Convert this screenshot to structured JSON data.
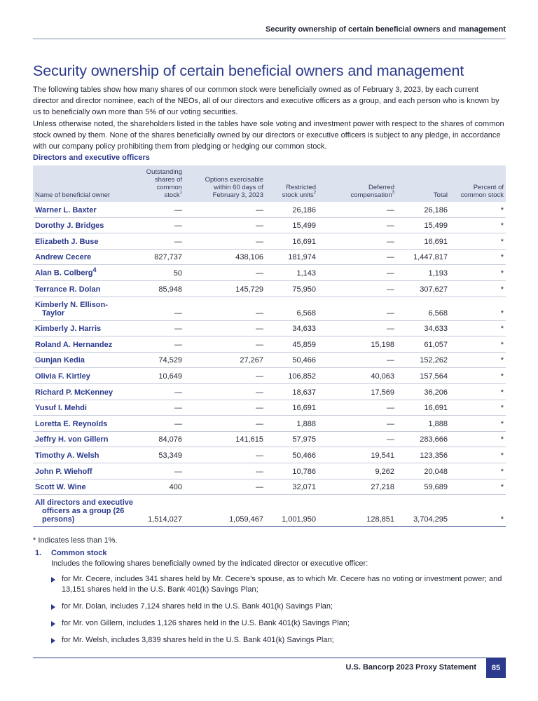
{
  "running_header": "Security ownership of certain beneficial owners and management",
  "title": "Security ownership of certain beneficial owners and management",
  "intro_paragraphs": [
    "The following tables show how many shares of our common stock were beneficially owned as of February 3, 2023, by each current director and director nominee, each of the NEOs, all of our directors and executive officers as a group, and each person who is known by us to beneficially own more than 5% of our voting securities.",
    "Unless otherwise noted, the shareholders listed in the tables have sole voting and investment power with respect to the shares of common stock owned by them. None of the shares beneficially owned by our directors or executive officers is subject to any pledge, in accordance with our company policy prohibiting them from pledging or hedging our common stock."
  ],
  "section_heading": "Directors and executive officers",
  "table": {
    "headers": {
      "name": "Name of beneficial owner",
      "outstanding": "Outstanding shares of common stock",
      "outstanding_sup": "1",
      "options": "Options exercisable within 60 days of February 3, 2023",
      "restricted": "Restricted stock units",
      "restricted_sup": "2",
      "deferred": "Deferred compensation",
      "deferred_sup": "3",
      "total": "Total",
      "percent": "Percent of common stock"
    },
    "rows": [
      {
        "name": "Warner L. Baxter",
        "sup": "",
        "outstanding": "—",
        "options": "—",
        "restricted": "26,186",
        "deferred": "—",
        "total": "26,186",
        "percent": "*"
      },
      {
        "name": "Dorothy J. Bridges",
        "sup": "",
        "outstanding": "—",
        "options": "—",
        "restricted": "15,499",
        "deferred": "—",
        "total": "15,499",
        "percent": "*"
      },
      {
        "name": "Elizabeth J. Buse",
        "sup": "",
        "outstanding": "—",
        "options": "—",
        "restricted": "16,691",
        "deferred": "—",
        "total": "16,691",
        "percent": "*"
      },
      {
        "name": "Andrew Cecere",
        "sup": "",
        "outstanding": "827,737",
        "options": "438,106",
        "restricted": "181,974",
        "deferred": "—",
        "total": "1,447,817",
        "percent": "*"
      },
      {
        "name": "Alan B. Colberg",
        "sup": "4",
        "outstanding": "50",
        "options": "—",
        "restricted": "1,143",
        "deferred": "—",
        "total": "1,193",
        "percent": "*"
      },
      {
        "name": "Terrance R. Dolan",
        "sup": "",
        "outstanding": "85,948",
        "options": "145,729",
        "restricted": "75,950",
        "deferred": "—",
        "total": "307,627",
        "percent": "*"
      },
      {
        "name": "Kimberly N. Ellison-Taylor",
        "sup": "",
        "outstanding": "—",
        "options": "—",
        "restricted": "6,568",
        "deferred": "—",
        "total": "6,568",
        "percent": "*"
      },
      {
        "name": "Kimberly J. Harris",
        "sup": "",
        "outstanding": "—",
        "options": "—",
        "restricted": "34,633",
        "deferred": "—",
        "total": "34,633",
        "percent": "*"
      },
      {
        "name": "Roland A. Hernandez",
        "sup": "",
        "outstanding": "—",
        "options": "—",
        "restricted": "45,859",
        "deferred": "15,198",
        "total": "61,057",
        "percent": "*"
      },
      {
        "name": "Gunjan Kedia",
        "sup": "",
        "outstanding": "74,529",
        "options": "27,267",
        "restricted": "50,466",
        "deferred": "—",
        "total": "152,262",
        "percent": "*"
      },
      {
        "name": "Olivia F. Kirtley",
        "sup": "",
        "outstanding": "10,649",
        "options": "—",
        "restricted": "106,852",
        "deferred": "40,063",
        "total": "157,564",
        "percent": "*"
      },
      {
        "name": "Richard P. McKenney",
        "sup": "",
        "outstanding": "—",
        "options": "—",
        "restricted": "18,637",
        "deferred": "17,569",
        "total": "36,206",
        "percent": "*"
      },
      {
        "name": "Yusuf I. Mehdi",
        "sup": "",
        "outstanding": "—",
        "options": "—",
        "restricted": "16,691",
        "deferred": "—",
        "total": "16,691",
        "percent": "*"
      },
      {
        "name": "Loretta E. Reynolds",
        "sup": "",
        "outstanding": "—",
        "options": "—",
        "restricted": "1,888",
        "deferred": "—",
        "total": "1,888",
        "percent": "*"
      },
      {
        "name": "Jeffry H. von Gillern",
        "sup": "",
        "outstanding": "84,076",
        "options": "141,615",
        "restricted": "57,975",
        "deferred": "—",
        "total": "283,666",
        "percent": "*"
      },
      {
        "name": "Timothy A. Welsh",
        "sup": "",
        "outstanding": "53,349",
        "options": "—",
        "restricted": "50,466",
        "deferred": "19,541",
        "total": "123,356",
        "percent": "*"
      },
      {
        "name": "John P. Wiehoff",
        "sup": "",
        "outstanding": "—",
        "options": "—",
        "restricted": "10,786",
        "deferred": "9,262",
        "total": "20,048",
        "percent": "*"
      },
      {
        "name": "Scott W. Wine",
        "sup": "",
        "outstanding": "400",
        "options": "—",
        "restricted": "32,071",
        "deferred": "27,218",
        "total": "59,689",
        "percent": "*"
      },
      {
        "name": "All directors and executive officers as a group (26 persons)",
        "sup": "",
        "outstanding": "1,514,027",
        "options": "1,059,467",
        "restricted": "1,001,950",
        "deferred": "128,851",
        "total": "3,704,295",
        "percent": "*"
      }
    ]
  },
  "footnote_star": "* Indicates less than 1%.",
  "footnotes": [
    {
      "number": "1.",
      "title": "Common stock",
      "description": "Includes the following shares beneficially owned by the indicated director or executive officer:",
      "bullets": [
        "for Mr. Cecere, includes 341 shares held by Mr. Cecere’s spouse, as to which Mr. Cecere has no voting or investment power; and 13,151 shares held in the U.S. Bank 401(k) Savings Plan;",
        "for Mr. Dolan, includes 7,124 shares held in the U.S. Bank 401(k) Savings Plan;",
        "for Mr. von Gillern, includes 1,126 shares held in the U.S. Bank 401(k) Savings Plan;",
        "for Mr. Welsh, includes 3,839 shares held in the U.S. Bank 401(k) Savings Plan;"
      ]
    }
  ],
  "footer": {
    "text": "U.S. Bancorp 2023 Proxy Statement",
    "page_number": "85"
  }
}
